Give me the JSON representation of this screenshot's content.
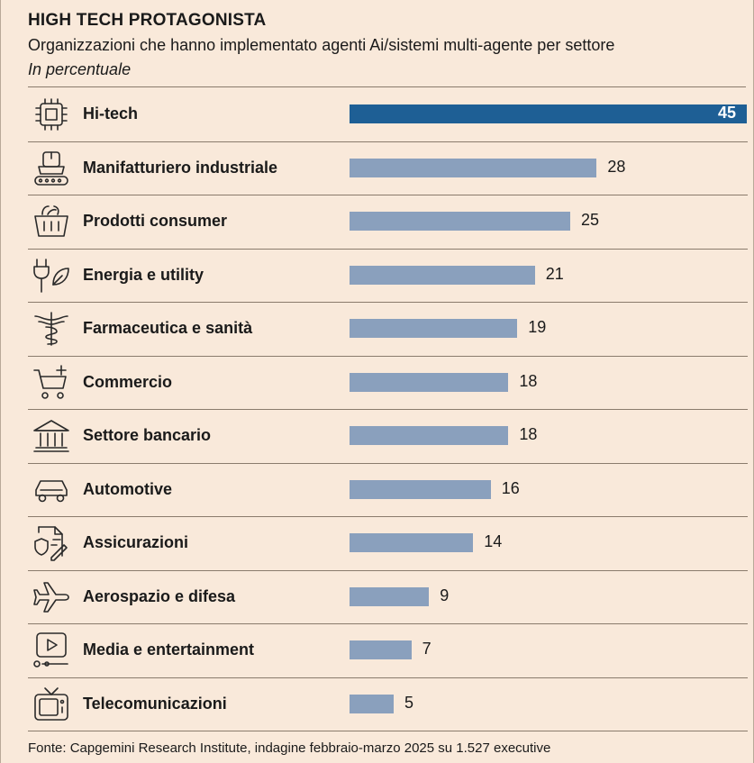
{
  "chart_data": {
    "type": "bar",
    "orientation": "horizontal",
    "title": "HIGH TECH PROTAGONISTA",
    "subtitle": "Organizzazioni che hanno implementato agenti Ai/sistemi multi-agente per settore",
    "unit_label": "In percentuale",
    "xlim": [
      0,
      45
    ],
    "grid": false,
    "categories": [
      "Hi-tech",
      "Manifatturiero industriale",
      "Prodotti consumer",
      "Energia e utility",
      "Farmaceutica e sanità",
      "Commercio",
      "Settore bancario",
      "Automotive",
      "Assicurazioni",
      "Aerospazio e difesa",
      "Media e entertainment",
      "Telecomunicazioni"
    ],
    "values": [
      45,
      28,
      25,
      21,
      19,
      18,
      18,
      16,
      14,
      9,
      7,
      5
    ],
    "icons": [
      "chip-icon",
      "conveyor-robot-icon",
      "basket-icon",
      "plug-leaf-icon",
      "caduceus-icon",
      "cart-plus-icon",
      "bank-icon",
      "car-icon",
      "insurance-document-icon",
      "airplane-icon",
      "media-player-icon",
      "tv-icon"
    ],
    "highlight_index": 0,
    "colors": {
      "highlight": "#1e5f95",
      "bar": "#8aa0bd",
      "background": "#f9e9da"
    },
    "source": "Fonte: Capgemini Research Institute, indagine febbraio-marzo 2025 su 1.527 executive"
  }
}
